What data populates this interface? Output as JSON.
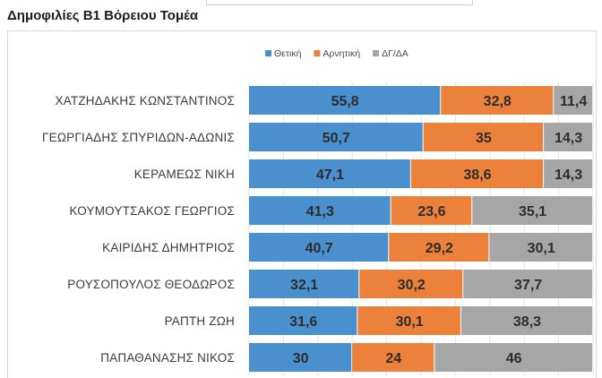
{
  "heading": "Δημοφιλίες Β1 Βόρειου Τομέα",
  "chart_data": {
    "type": "bar",
    "orientation": "horizontal",
    "stacked": "percent",
    "title": "Δημοφιλίες Β1 Βόρειου Τομέα",
    "xlabel": "",
    "ylabel": "",
    "xlim": [
      0,
      100
    ],
    "grid": true,
    "legend_position": "top",
    "categories": [
      "ΧΑΤΖΗΔΑΚΗΣ ΚΩΝΣΤΑΝΤΙΝΟΣ",
      "ΓΕΩΡΓΙΑΔΗΣ ΣΠΥΡΙΔΩΝ-ΑΔΩΝΙΣ",
      "ΚΕΡΑΜΕΩΣ ΝΙΚΗ",
      "ΚΟΥΜΟΥΤΣΑΚΟΣ ΓΕΩΡΓΙΟΣ",
      "ΚΑΙΡΙΔΗΣ ΔΗΜΗΤΡΙΟΣ",
      "ΡΟΥΣΟΠΟΥΛΟΣ ΘΕΟΔΩΡΟΣ",
      "ΡΑΠΤΗ ΖΩΗ",
      "ΠΑΠΑΘΑΝΑΣΗΣ ΝΙΚΟΣ"
    ],
    "series": [
      {
        "name": "Θετική",
        "color": "#4a8fce",
        "values": [
          55.8,
          50.7,
          47.1,
          41.3,
          40.7,
          32.1,
          31.6,
          30
        ],
        "labels": [
          "55,8",
          "50,7",
          "47,1",
          "41,3",
          "40,7",
          "32,1",
          "31,6",
          "30"
        ]
      },
      {
        "name": "Αρνητική",
        "color": "#ec813c",
        "values": [
          32.8,
          35,
          38.6,
          23.6,
          29.2,
          30.2,
          30.1,
          24
        ],
        "labels": [
          "32,8",
          "35",
          "38,6",
          "23,6",
          "29,2",
          "30,2",
          "30,1",
          "24"
        ]
      },
      {
        "name": "ΔΓ/ΔΑ",
        "color": "#a6a6a6",
        "values": [
          11.4,
          14.3,
          14.3,
          35.1,
          30.1,
          37.7,
          38.3,
          46
        ],
        "labels": [
          "11,4",
          "14,3",
          "14,3",
          "35,1",
          "30,1",
          "37,7",
          "38,3",
          "46"
        ]
      }
    ]
  }
}
